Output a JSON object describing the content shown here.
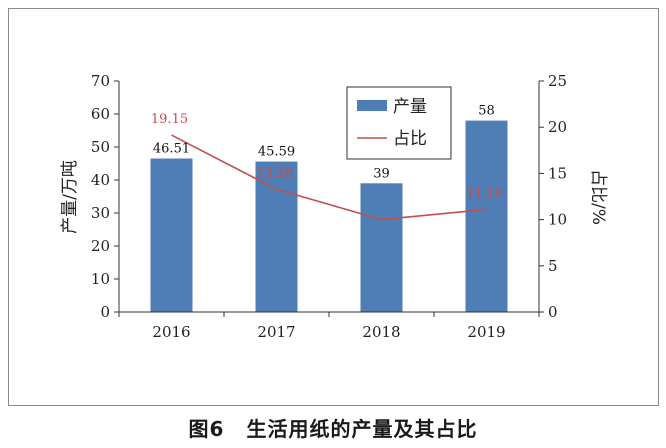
{
  "caption": {
    "figure_no": "图6",
    "title": "生活用纸的产量及其占比"
  },
  "chart_data": {
    "type": "bar",
    "categories": [
      "2016",
      "2017",
      "2018",
      "2019"
    ],
    "series": [
      {
        "name": "产量",
        "type": "bar",
        "axis": "left",
        "values": [
          46.51,
          45.59,
          39,
          58
        ],
        "labels": [
          "46.51",
          "45.59",
          "39",
          "58"
        ],
        "color": "#4F7DB6"
      },
      {
        "name": "占比",
        "type": "line",
        "axis": "right",
        "values": [
          19.15,
          13.28,
          10.0,
          11.1
        ],
        "labels": [
          "19.15",
          "13.28",
          "",
          "11.10"
        ],
        "color": "#C0504D"
      }
    ],
    "ylabel": "产量/万吨",
    "ylim": [
      0,
      70
    ],
    "yticks": [
      "0",
      "10",
      "20",
      "30",
      "40",
      "50",
      "60",
      "70"
    ],
    "y2label": "占比/%",
    "y2lim": [
      0,
      25
    ],
    "y2ticks": [
      "0",
      "5",
      "10",
      "15",
      "20",
      "25"
    ],
    "grid": false,
    "legend": "top-right"
  },
  "colors": {
    "bar": "#4F7DB6",
    "line": "#C0504D",
    "axis": "#333333"
  }
}
